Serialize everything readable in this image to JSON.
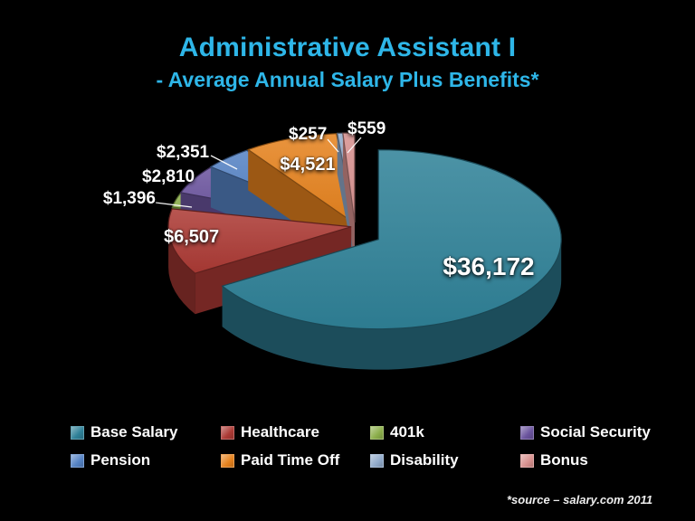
{
  "slide": {
    "title": "Administrative Assistant I",
    "subtitle": "- Average Annual Salary Plus Benefits*",
    "title_color": "#2EB6E8",
    "background_color": "#000000",
    "footnote": "*source – salary.com 2011"
  },
  "chart_data": {
    "type": "pie",
    "style": "3d-exploded-pie",
    "title": "Administrative Assistant I - Average Annual Salary Plus Benefits",
    "unit": "USD",
    "labels": [
      "Base Salary",
      "Healthcare",
      "401k",
      "Social Security",
      "Pension",
      "Paid Time Off",
      "Disability",
      "Bonus"
    ],
    "values": [
      36172,
      6507,
      1396,
      2810,
      2351,
      4521,
      257,
      559
    ],
    "value_labels": [
      "$36,172",
      "$6,507",
      "$1,396",
      "$2,810",
      "$2,351",
      "$4,521",
      "$257",
      "$559"
    ],
    "colors": [
      "#2F8198",
      "#AC3A35",
      "#8CAF4B",
      "#6B549E",
      "#5583C4",
      "#E5821E",
      "#92ABCB",
      "#D8918F"
    ],
    "total": 54573,
    "start_angle_deg": 0,
    "clockwise": true,
    "legend_position": "bottom",
    "legend_rows": [
      [
        "Base Salary",
        "Healthcare",
        "401k",
        "Social Security"
      ],
      [
        "Pension",
        "Paid Time Off",
        "Disability",
        "Bonus"
      ]
    ]
  }
}
